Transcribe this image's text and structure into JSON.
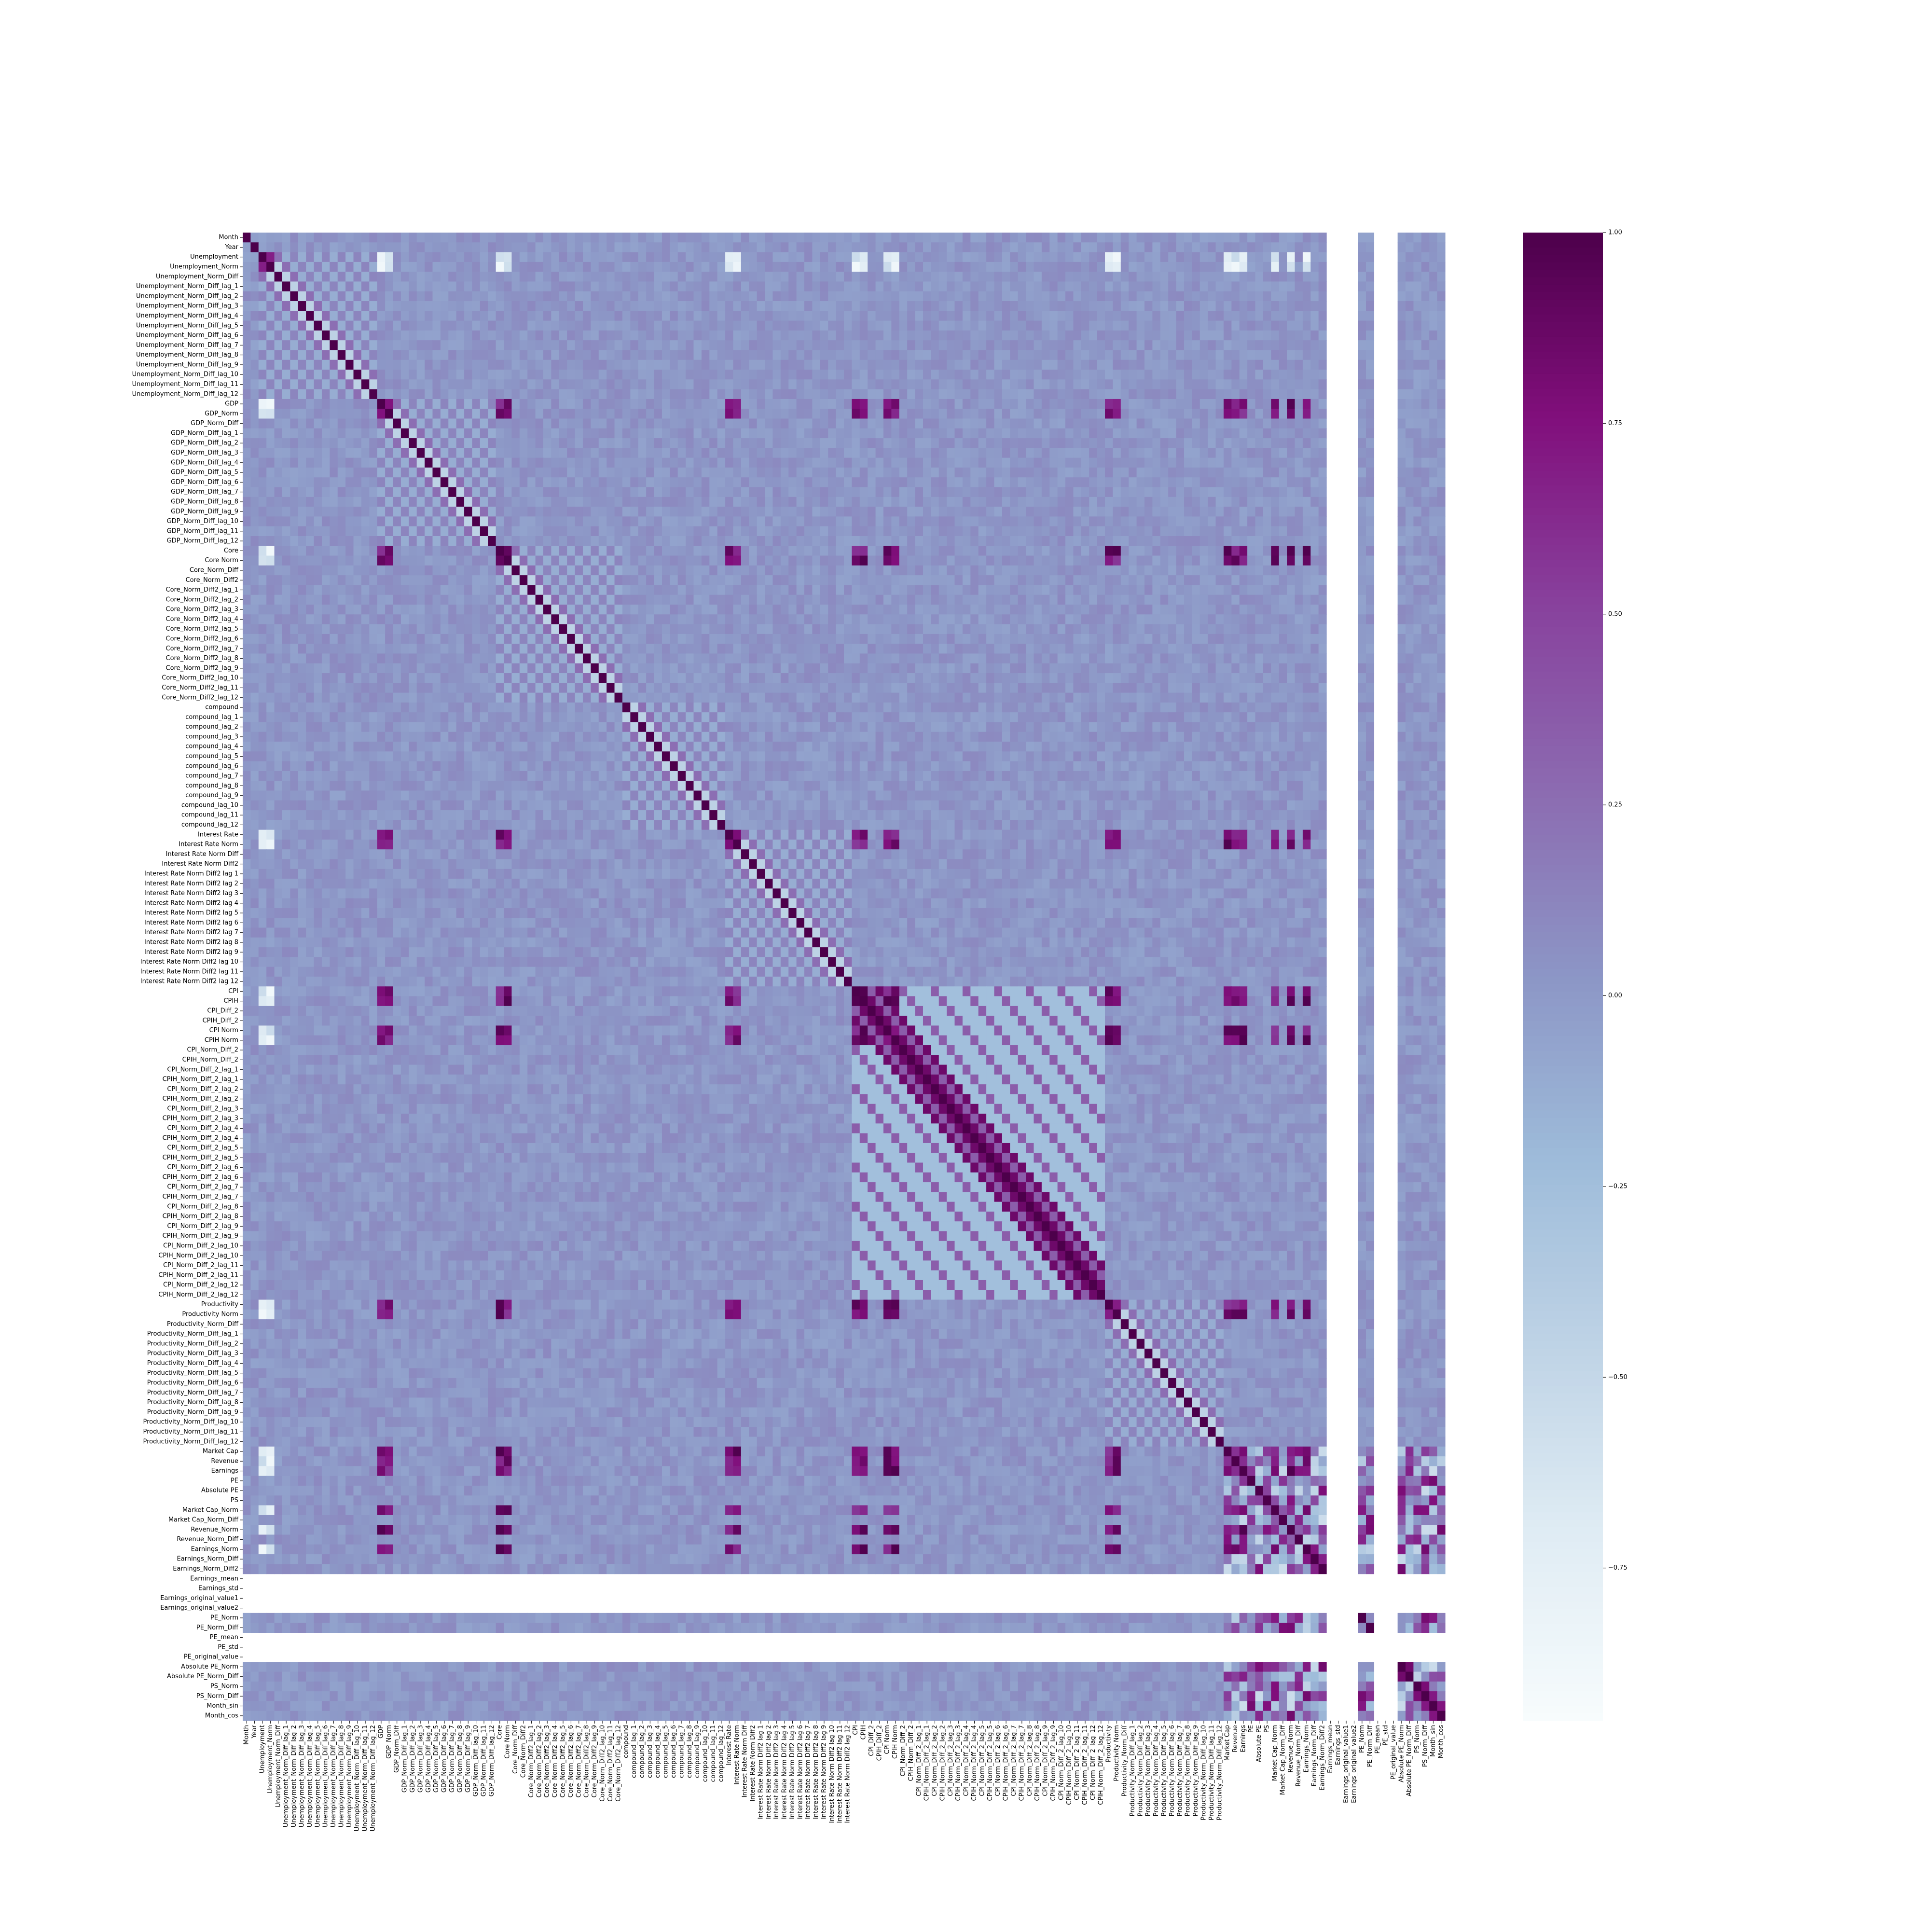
{
  "chart_data": {
    "type": "heatmap",
    "title": "",
    "xlabel": "",
    "ylabel": "",
    "labels": [
      "Month",
      "Year",
      "Unemployment",
      "Unemployment_Norm",
      "Unemployment_Norm_Diff",
      "Unemployment_Norm_Diff_lag_1",
      "Unemployment_Norm_Diff_lag_2",
      "Unemployment_Norm_Diff_lag_3",
      "Unemployment_Norm_Diff_lag_4",
      "Unemployment_Norm_Diff_lag_5",
      "Unemployment_Norm_Diff_lag_6",
      "Unemployment_Norm_Diff_lag_7",
      "Unemployment_Norm_Diff_lag_8",
      "Unemployment_Norm_Diff_lag_9",
      "Unemployment_Norm_Diff_lag_10",
      "Unemployment_Norm_Diff_lag_11",
      "Unemployment_Norm_Diff_lag_12",
      "GDP",
      "GDP_Norm",
      "GDP_Norm_Diff",
      "GDP_Norm_Diff_lag_1",
      "GDP_Norm_Diff_lag_2",
      "GDP_Norm_Diff_lag_3",
      "GDP_Norm_Diff_lag_4",
      "GDP_Norm_Diff_lag_5",
      "GDP_Norm_Diff_lag_6",
      "GDP_Norm_Diff_lag_7",
      "GDP_Norm_Diff_lag_8",
      "GDP_Norm_Diff_lag_9",
      "GDP_Norm_Diff_lag_10",
      "GDP_Norm_Diff_lag_11",
      "GDP_Norm_Diff_lag_12",
      "Core",
      "Core Norm",
      "Core_Norm_Diff",
      "Core_Norm_Diff2",
      "Core_Norm_Diff2_lag_1",
      "Core_Norm_Diff2_lag_2",
      "Core_Norm_Diff2_lag_3",
      "Core_Norm_Diff2_lag_4",
      "Core_Norm_Diff2_lag_5",
      "Core_Norm_Diff2_lag_6",
      "Core_Norm_Diff2_lag_7",
      "Core_Norm_Diff2_lag_8",
      "Core_Norm_Diff2_lag_9",
      "Core_Norm_Diff2_lag_10",
      "Core_Norm_Diff2_lag_11",
      "Core_Norm_Diff2_lag_12",
      "compound",
      "compound_lag_1",
      "compound_lag_2",
      "compound_lag_3",
      "compound_lag_4",
      "compound_lag_5",
      "compound_lag_6",
      "compound_lag_7",
      "compound_lag_8",
      "compound_lag_9",
      "compound_lag_10",
      "compound_lag_11",
      "compound_lag_12",
      "Interest Rate",
      "Interest Rate Norm",
      "Interest Rate Norm Diff",
      "Interest Rate Norm Diff2",
      "Interest Rate Norm Diff2 lag 1",
      "Interest Rate Norm Diff2 lag 2",
      "Interest Rate Norm Diff2 lag 3",
      "Interest Rate Norm Diff2 lag 4",
      "Interest Rate Norm Diff2 lag 5",
      "Interest Rate Norm Diff2 lag 6",
      "Interest Rate Norm Diff2 lag 7",
      "Interest Rate Norm Diff2 lag 8",
      "Interest Rate Norm Diff2 lag 9",
      "Interest Rate Norm Diff2 lag 10",
      "Interest Rate Norm Diff2 lag 11",
      "Interest Rate Norm Diff2 lag 12",
      "CPI",
      "CPIH",
      "CPI_Diff_2",
      "CPIH_Diff_2",
      "CPI Norm",
      "CPIH Norm",
      "CPI_Norm_Diff_2",
      "CPIH_Norm_Diff_2",
      "CPI_Norm_Diff_2_lag_1",
      "CPIH_Norm_Diff_2_lag_1",
      "CPI_Norm_Diff_2_lag_2",
      "CPIH_Norm_Diff_2_lag_2",
      "CPI_Norm_Diff_2_lag_3",
      "CPIH_Norm_Diff_2_lag_3",
      "CPI_Norm_Diff_2_lag_4",
      "CPIH_Norm_Diff_2_lag_4",
      "CPI_Norm_Diff_2_lag_5",
      "CPIH_Norm_Diff_2_lag_5",
      "CPI_Norm_Diff_2_lag_6",
      "CPIH_Norm_Diff_2_lag_6",
      "CPI_Norm_Diff_2_lag_7",
      "CPIH_Norm_Diff_2_lag_7",
      "CPI_Norm_Diff_2_lag_8",
      "CPIH_Norm_Diff_2_lag_8",
      "CPI_Norm_Diff_2_lag_9",
      "CPIH_Norm_Diff_2_lag_9",
      "CPI_Norm_Diff_2_lag_10",
      "CPIH_Norm_Diff_2_lag_10",
      "CPI_Norm_Diff_2_lag_11",
      "CPIH_Norm_Diff_2_lag_11",
      "CPI_Norm_Diff_2_lag_12",
      "CPIH_Norm_Diff_2_lag_12",
      "Productivity",
      "Productivity Norm",
      "Productivity_Norm_Diff",
      "Productivity_Norm_Diff_lag_1",
      "Productivity_Norm_Diff_lag_2",
      "Productivity_Norm_Diff_lag_3",
      "Productivity_Norm_Diff_lag_4",
      "Productivity_Norm_Diff_lag_5",
      "Productivity_Norm_Diff_lag_6",
      "Productivity_Norm_Diff_lag_7",
      "Productivity_Norm_Diff_lag_8",
      "Productivity_Norm_Diff_lag_9",
      "Productivity_Norm_Diff_lag_10",
      "Productivity_Norm_Diff_lag_11",
      "Productivity_Norm_Diff_lag_12",
      "Market Cap",
      "Revenue",
      "Earnings",
      "PE",
      "Absolute PE",
      "PS",
      "Market Cap_Norm",
      "Market Cap_Norm_Diff",
      "Revenue_Norm",
      "Revenue_Norm_Diff",
      "Earnings_Norm",
      "Earnings_Norm_Diff",
      "Earnings_Norm_Diff2",
      "Earnings_mean",
      "Earnings_std",
      "Earnings_original_value1",
      "Earnings_original_value2",
      "PE_Norm",
      "PE_Norm_Diff",
      "PE_mean",
      "PE_std",
      "PE_original_value",
      "Absolute PE_Norm",
      "Absolute PE_Norm_Diff",
      "PS_Norm",
      "PS_Norm_Diff",
      "Month_sin",
      "Month_cos"
    ],
    "x_tick_labels": [
      "Month",
      "Year",
      "Unemployment",
      "Unemployment_Norm",
      "Unemployment_Norm_Diff",
      "Unemployment_Norm_Diff_lag_1",
      "Unemployment_Norm_Diff_lag_2",
      "Unemployment_Norm_Diff_lag_3",
      "Unemployment_Norm_Diff_lag_4",
      "Unemployment_Norm_Diff_lag_5",
      "Unemployment_Norm_Diff_lag_6",
      "Unemployment_Norm_Diff_lag_7",
      "Unemployment_Norm_Diff_lag_8",
      "Unemployment_Norm_Diff_lag_9",
      "Unemployment_Norm_Diff_lag_10",
      "Unemployment_Norm_Diff_lag_11",
      "Unemployment_Norm_Diff_lag_12",
      "GDP",
      "GDP_Norm",
      "GDP_Norm_Diff",
      "GDP_Norm_Diff_lag_1",
      "GDP_Norm_Diff_lag_2",
      "GDP_Norm_Diff_lag_3",
      "GDP_Norm_Diff_lag_4",
      "GDP_Norm_Diff_lag_5",
      "GDP_Norm_Diff_lag_6",
      "GDP_Norm_Diff_lag_7",
      "GDP_Norm_Diff_lag_8",
      "GDP_Norm_Diff_lag_9",
      "GDP_Norm_Diff_lag_10",
      "GDP_Norm_Diff_lag_11",
      "GDP_Norm_Diff_lag_12",
      "Core",
      "Core Norm",
      "Core_Norm_Diff",
      "Core_Norm_Diff2",
      "Core_Norm_Diff2_lag_1",
      "Core_Norm_Diff2_lag_2",
      "Core_Norm_Diff2_lag_3",
      "Core_Norm_Diff2_lag_4",
      "Core_Norm_Diff2_lag_5",
      "Core_Norm_Diff2_lag_6",
      "Core_Norm_Diff2_lag_7",
      "Core_Norm_Diff2_lag_8",
      "Core_Norm_Diff2_lag_9",
      "Core_Norm_Diff2_lag_10",
      "Core_Norm_Diff2_lag_11",
      "Core_Norm_Diff2_lag_12",
      "compound",
      "compound_lag_1",
      "compound_lag_2",
      "compound_lag_3",
      "compound_lag_4",
      "compound_lag_5",
      "compound_lag_6",
      "compound_lag_7",
      "compound_lag_8",
      "compound_lag_9",
      "compound_lag_10",
      "compound_lag_11",
      "compound_lag_12",
      "Interest Rate",
      "Interest Rate Norm",
      "Interest Rate Norm Diff",
      "Interest Rate Norm Diff2",
      "Interest Rate Norm Diff2 lag 1",
      "Interest Rate Norm Diff2 lag 2",
      "Interest Rate Norm Diff2 lag 3",
      "Interest Rate Norm Diff2 lag 4",
      "Interest Rate Norm Diff2 lag 5",
      "Interest Rate Norm Diff2 lag 6",
      "Interest Rate Norm Diff2 lag 7",
      "Interest Rate Norm Diff2 lag 8",
      "Interest Rate Norm Diff2 lag 9",
      "Interest Rate Norm Diff2 lag 10",
      "Interest Rate Norm Diff2 lag 11",
      "Interest Rate Norm Diff2 lag 12",
      "CPI",
      "CPIH",
      "CPI_Diff_2",
      "CPIH_Diff_2",
      "CPI Norm",
      "CPIH Norm",
      "CPI_Norm_Diff_2",
      "CPIH_Norm_Diff_2",
      "CPI_Norm_Diff_2_lag_1",
      "CPIH_Norm_Diff_2_lag_1",
      "CPI_Norm_Diff_2_lag_2",
      "CPIH_Norm_Diff_2_lag_2",
      "CPI_Norm_Diff_2_lag_3",
      "CPIH_Norm_Diff_2_lag_3",
      "CPI_Norm_Diff_2_lag_4",
      "CPIH_Norm_Diff_2_lag_4",
      "CPI_Norm_Diff_2_lag_5",
      "CPIH_Norm_Diff_2_lag_5",
      "CPI_Norm_Diff_2_lag_6",
      "CPIH_Norm_Diff_2_lag_6",
      "CPI_Norm_Diff_2_lag_7",
      "CPIH_Norm_Diff_2_lag_7",
      "CPI_Norm_Diff_2_lag_8",
      "CPIH_Norm_Diff_2_lag_8",
      "CPI_Norm_Diff_2_lag_9",
      "CPIH_Norm_Diff_2_lag_9",
      "CPI_Norm_Diff_2_lag_10",
      "CPIH_Norm_Diff_2_lag_10",
      "CPI_Norm_Diff_2_lag_11",
      "CPIH_Norm_Diff_2_lag_11",
      "CPI_Norm_Diff_2_lag_12",
      "CPIH_Norm_Diff_2_lag_12",
      "Productivity",
      "Productivity Norm",
      "Productivity_Norm_Diff",
      "Productivity_Norm_Diff_lag_1",
      "Productivity_Norm_Diff_lag_2",
      "Productivity_Norm_Diff_lag_3",
      "Productivity_Norm_Diff_lag_4",
      "Productivity_Norm_Diff_lag_5",
      "Productivity_Norm_Diff_lag_6",
      "Productivity_Norm_Diff_lag_7",
      "Productivity_Norm_Diff_lag_8",
      "Productivity_Norm_Diff_lag_9",
      "Productivity_Norm_Diff_lag_10",
      "Productivity_Norm_Diff_lag_11",
      "Productivity_Norm_Diff_lag_12",
      "Market Cap",
      "Revenue",
      "Earnings",
      "PE",
      "Absolute PE",
      "PS",
      "Market Cap_Norm",
      "Market Cap_Norm_Diff",
      "Revenue_Norm",
      "Revenue_Norm_Diff",
      "Earnings_Norm",
      "Earnings_Norm_Diff",
      "Earnings_Norm_Diff2",
      "Earnings_mean",
      "Earnings_std",
      "Earnings_original_value1",
      "Earnings_original_value2",
      "PE_Norm",
      "PE_Norm_Diff",
      "PE_mean",
      "PE_std",
      "PE_original_value",
      "Absolute PE_Norm",
      "Absolute PE_Norm_Diff",
      "PS_Norm",
      "PS_Norm_Diff",
      "Month_sin",
      "Month_cos"
    ],
    "undefined_labels": [
      "Earnings_mean",
      "Earnings_std",
      "Earnings_original_value1",
      "Earnings_original_value2",
      "PE_mean",
      "PE_std",
      "PE_original_value"
    ],
    "colormap": "BuPu",
    "colorbar": {
      "min": -0.95,
      "max": 1.0,
      "ticks": [
        1.0,
        0.75,
        0.5,
        0.25,
        0.0,
        -0.25,
        -0.5,
        -0.75
      ],
      "tick_labels": [
        "1.00",
        "0.75",
        "0.50",
        "0.25",
        "0.00",
        "−0.25",
        "−0.50",
        "−0.75"
      ]
    },
    "colors": {
      "low": "#f7fcfd",
      "mid": "#8c96c6",
      "high": "#4d004b"
    },
    "legend_position": "right",
    "grid": false
  }
}
